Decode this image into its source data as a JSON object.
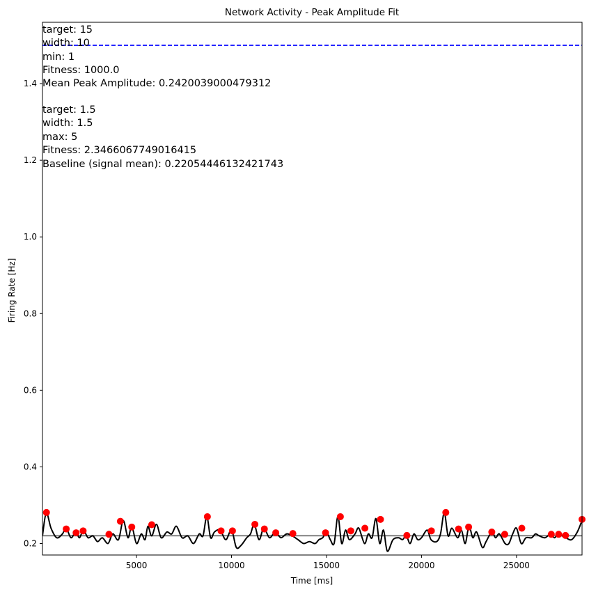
{
  "chart_data": {
    "type": "line",
    "title": "Network Activity - Peak Amplitude Fit",
    "xlabel": "Time [ms]",
    "ylabel": "Firing Rate [Hz]",
    "xlim": [
      50,
      28450
    ],
    "ylim": [
      0.17,
      1.56
    ],
    "x_ticks": [
      5000,
      10000,
      15000,
      20000,
      25000
    ],
    "y_ticks": [
      0.2,
      0.4,
      0.6,
      0.8,
      1.0,
      1.2,
      1.4
    ],
    "grid": false,
    "series": [
      {
        "kind": "signal",
        "color": "#000000",
        "x": [
          50,
          250,
          500,
          800,
          1100,
          1300,
          1550,
          1800,
          2000,
          2200,
          2450,
          2700,
          2950,
          3200,
          3500,
          3750,
          4050,
          4300,
          4550,
          4750,
          5000,
          5250,
          5450,
          5600,
          5800,
          6050,
          6300,
          6600,
          6850,
          7100,
          7400,
          7700,
          8000,
          8300,
          8500,
          8700,
          8900,
          9100,
          9400,
          9700,
          10000,
          10250,
          10500,
          10800,
          11000,
          11200,
          11450,
          11700,
          12000,
          12300,
          12600,
          12900,
          13200,
          13500,
          13800,
          14100,
          14400,
          14600,
          14800,
          15000,
          15200,
          15400,
          15600,
          15800,
          16000,
          16200,
          16500,
          16700,
          17000,
          17200,
          17400,
          17600,
          17800,
          18000,
          18200,
          18500,
          18800,
          19000,
          19200,
          19400,
          19600,
          19800,
          20000,
          20300,
          20500,
          20800,
          21000,
          21200,
          21400,
          21600,
          21900,
          22100,
          22300,
          22500,
          22700,
          22900,
          23200,
          23400,
          23700,
          23900,
          24100,
          24400,
          24600,
          24800,
          25000,
          25250,
          25500,
          25800,
          26000,
          26200,
          26500,
          26800,
          27000,
          27200,
          27400,
          27600,
          27900,
          28200,
          28450
        ],
        "y": [
          0.22,
          0.28,
          0.24,
          0.215,
          0.225,
          0.24,
          0.215,
          0.23,
          0.215,
          0.235,
          0.215,
          0.22,
          0.205,
          0.215,
          0.2,
          0.225,
          0.21,
          0.26,
          0.215,
          0.245,
          0.2,
          0.225,
          0.21,
          0.245,
          0.22,
          0.25,
          0.215,
          0.23,
          0.225,
          0.245,
          0.215,
          0.22,
          0.2,
          0.225,
          0.22,
          0.27,
          0.215,
          0.23,
          0.235,
          0.21,
          0.235,
          0.19,
          0.195,
          0.215,
          0.225,
          0.25,
          0.21,
          0.24,
          0.215,
          0.23,
          0.215,
          0.225,
          0.22,
          0.21,
          0.2,
          0.205,
          0.2,
          0.21,
          0.215,
          0.23,
          0.21,
          0.2,
          0.27,
          0.2,
          0.235,
          0.21,
          0.225,
          0.24,
          0.2,
          0.225,
          0.215,
          0.265,
          0.2,
          0.235,
          0.18,
          0.21,
          0.215,
          0.21,
          0.22,
          0.2,
          0.225,
          0.21,
          0.215,
          0.235,
          0.21,
          0.205,
          0.225,
          0.28,
          0.22,
          0.24,
          0.215,
          0.235,
          0.2,
          0.245,
          0.215,
          0.23,
          0.19,
          0.205,
          0.23,
          0.215,
          0.225,
          0.2,
          0.2,
          0.225,
          0.24,
          0.2,
          0.215,
          0.215,
          0.225,
          0.22,
          0.215,
          0.225,
          0.215,
          0.225,
          0.22,
          0.215,
          0.21,
          0.23,
          0.26
        ]
      },
      {
        "kind": "peaks",
        "color": "#ff0000",
        "x": [
          260,
          1300,
          1820,
          2190,
          3550,
          4150,
          4750,
          5800,
          8730,
          9450,
          10050,
          11230,
          11730,
          12330,
          13230,
          14950,
          15730,
          16280,
          17020,
          17840,
          19230,
          20520,
          21280,
          21950,
          22480,
          23700,
          24380,
          25280,
          26830,
          27220,
          27580,
          28450
        ],
        "y": [
          0.281,
          0.238,
          0.228,
          0.233,
          0.224,
          0.258,
          0.243,
          0.249,
          0.27,
          0.233,
          0.233,
          0.25,
          0.238,
          0.228,
          0.226,
          0.228,
          0.27,
          0.233,
          0.24,
          0.263,
          0.221,
          0.233,
          0.281,
          0.238,
          0.243,
          0.23,
          0.224,
          0.24,
          0.224,
          0.224,
          0.221,
          0.263
        ]
      }
    ],
    "hlines": [
      {
        "kind": "baseline",
        "y": 0.2205,
        "color": "#808080",
        "style": "solid"
      },
      {
        "kind": "target",
        "y": 1.5,
        "color": "#0000ff",
        "style": "dashed"
      }
    ],
    "annotations": [
      "target: 15",
      "width: 10",
      "min: 1",
      "Fitness: 1000.0",
      "Mean Peak Amplitude: 0.2420039000479312",
      "target: 1.5",
      "width: 1.5",
      "max: 5",
      "Fitness: 2.3466067749016415",
      "Baseline (signal mean): 0.22054446132421743"
    ]
  }
}
